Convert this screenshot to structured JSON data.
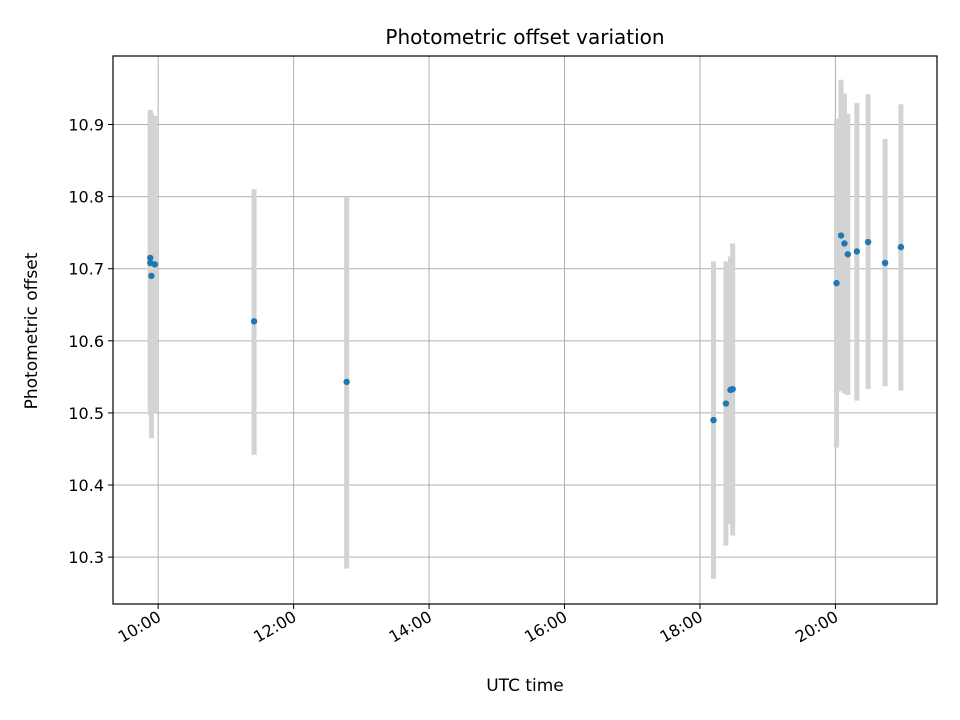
{
  "chart_data": {
    "type": "scatter",
    "title": "Photometric offset variation",
    "xlabel": "UTC time",
    "ylabel": "Photometric offset",
    "x_axis_type": "time",
    "xlim": [
      "09:20",
      "21:30"
    ],
    "ylim": [
      10.235,
      10.995
    ],
    "x_ticks": [
      "10:00",
      "12:00",
      "14:00",
      "16:00",
      "18:00",
      "20:00"
    ],
    "y_ticks": [
      10.3,
      10.4,
      10.5,
      10.6,
      10.7,
      10.8,
      10.9
    ],
    "grid": true,
    "marker_color": "#1f77b4",
    "errorbar_color": "#d3d3d3",
    "points": [
      {
        "time": "09:53",
        "y": 10.708,
        "lo": 10.497,
        "hi": 10.92
      },
      {
        "time": "09:53",
        "y": 10.715,
        "lo": 10.51,
        "hi": 10.92
      },
      {
        "time": "09:54",
        "y": 10.69,
        "lo": 10.465,
        "hi": 10.915
      },
      {
        "time": "09:57",
        "y": 10.706,
        "lo": 10.5,
        "hi": 10.912
      },
      {
        "time": "11:25",
        "y": 10.627,
        "lo": 10.442,
        "hi": 10.81
      },
      {
        "time": "12:47",
        "y": 10.543,
        "lo": 10.284,
        "hi": 10.8
      },
      {
        "time": "18:12",
        "y": 10.49,
        "lo": 10.27,
        "hi": 10.71
      },
      {
        "time": "18:23",
        "y": 10.513,
        "lo": 10.316,
        "hi": 10.71
      },
      {
        "time": "18:27",
        "y": 10.532,
        "lo": 10.346,
        "hi": 10.717
      },
      {
        "time": "18:29",
        "y": 10.533,
        "lo": 10.33,
        "hi": 10.735
      },
      {
        "time": "20:01",
        "y": 10.68,
        "lo": 10.452,
        "hi": 10.908
      },
      {
        "time": "20:05",
        "y": 10.746,
        "lo": 10.53,
        "hi": 10.962
      },
      {
        "time": "20:08",
        "y": 10.735,
        "lo": 10.527,
        "hi": 10.943
      },
      {
        "time": "20:11",
        "y": 10.72,
        "lo": 10.525,
        "hi": 10.915
      },
      {
        "time": "20:19",
        "y": 10.724,
        "lo": 10.517,
        "hi": 10.93
      },
      {
        "time": "20:29",
        "y": 10.737,
        "lo": 10.533,
        "hi": 10.942
      },
      {
        "time": "20:44",
        "y": 10.708,
        "lo": 10.537,
        "hi": 10.88
      },
      {
        "time": "20:58",
        "y": 10.73,
        "lo": 10.531,
        "hi": 10.928
      }
    ]
  }
}
